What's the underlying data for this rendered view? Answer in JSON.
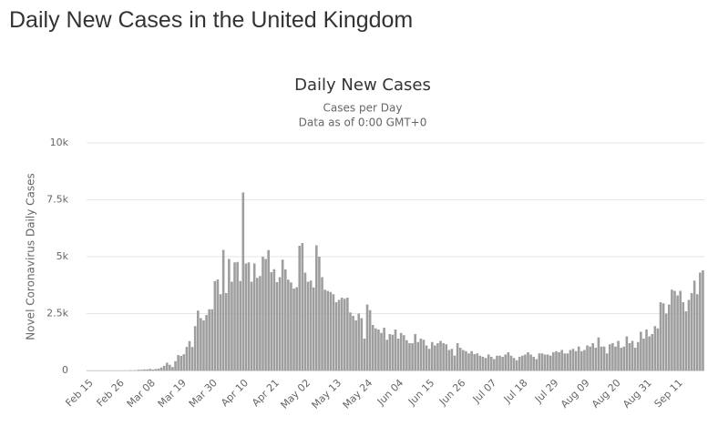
{
  "page_title": "Daily New Cases in the United Kingdom",
  "chart_data": {
    "type": "bar",
    "title": "Daily New Cases",
    "subtitle": [
      "Cases per Day",
      "Data as of 0:00 GMT+0"
    ],
    "y_label": "Novel Coronavirus Daily Cases",
    "color": "#9e9e9e",
    "grid": true,
    "ylim": [
      0,
      10000
    ],
    "yticks": [
      0,
      {
        "value": 2500,
        "label": "2.5k"
      },
      {
        "value": 5000,
        "label": "5k"
      },
      {
        "value": 7500,
        "label": "7.5k"
      },
      {
        "value": 10000,
        "label": "10k"
      }
    ],
    "categories": [
      "Feb 15",
      null,
      null,
      null,
      null,
      null,
      null,
      null,
      null,
      null,
      null,
      "Feb 26",
      null,
      null,
      null,
      null,
      null,
      null,
      null,
      null,
      null,
      null,
      "Mar 08",
      null,
      null,
      null,
      null,
      null,
      null,
      null,
      null,
      null,
      null,
      "Mar 19",
      null,
      null,
      null,
      null,
      null,
      null,
      null,
      null,
      null,
      null,
      "Mar 30",
      null,
      null,
      null,
      null,
      null,
      null,
      null,
      null,
      null,
      null,
      "Apr 10",
      null,
      null,
      null,
      null,
      null,
      null,
      null,
      null,
      null,
      null,
      "Apr 21",
      null,
      null,
      null,
      null,
      null,
      null,
      null,
      null,
      null,
      null,
      "May 02",
      null,
      null,
      null,
      null,
      null,
      null,
      null,
      null,
      null,
      null,
      "May 13",
      null,
      null,
      null,
      null,
      null,
      null,
      null,
      null,
      null,
      null,
      "May 24",
      null,
      null,
      null,
      null,
      null,
      null,
      null,
      null,
      null,
      null,
      "Jun 04",
      null,
      null,
      null,
      null,
      null,
      null,
      null,
      null,
      null,
      null,
      "Jun 15",
      null,
      null,
      null,
      null,
      null,
      null,
      null,
      null,
      null,
      null,
      "Jun 26",
      null,
      null,
      null,
      null,
      null,
      null,
      null,
      null,
      null,
      null,
      "Jul 07",
      null,
      null,
      null,
      null,
      null,
      null,
      null,
      null,
      null,
      null,
      "Jul 18",
      null,
      null,
      null,
      null,
      null,
      null,
      null,
      null,
      null,
      null,
      "Jul 29",
      null,
      null,
      null,
      null,
      null,
      null,
      null,
      null,
      null,
      null,
      "Aug 09",
      null,
      null,
      null,
      null,
      null,
      null,
      null,
      null,
      null,
      null,
      "Aug 20",
      null,
      null,
      null,
      null,
      null,
      null,
      null,
      null,
      null,
      null,
      "Aug 31",
      null,
      null,
      null,
      null,
      null,
      null,
      null,
      null,
      null,
      null,
      "Sep 11",
      null,
      null,
      null,
      null,
      null,
      null,
      null,
      null,
      null
    ],
    "values": [
      0,
      0,
      0,
      0,
      0,
      0,
      0,
      0,
      0,
      4,
      0,
      0,
      2,
      5,
      3,
      12,
      4,
      11,
      34,
      29,
      48,
      45,
      69,
      43,
      62,
      77,
      130,
      208,
      342,
      251,
      152,
      407,
      676,
      643,
      714,
      1035,
      1289,
      1030,
      1950,
      2630,
      2300,
      2200,
      2440,
      2690,
      2690,
      3930,
      4000,
      3350,
      5300,
      3400,
      4900,
      3900,
      4750,
      4770,
      3930,
      7820,
      4700,
      4750,
      3900,
      4700,
      4070,
      4150,
      5000,
      4900,
      5290,
      4320,
      4450,
      3880,
      4100,
      4870,
      4440,
      3990,
      3870,
      3600,
      3660,
      5480,
      5600,
      4300,
      3900,
      3950,
      3650,
      5500,
      5000,
      4100,
      3550,
      3500,
      3450,
      3350,
      3000,
      3100,
      3200,
      3150,
      3200,
      2550,
      2400,
      2200,
      2500,
      2300,
      1400,
      2900,
      2650,
      2000,
      1850,
      1800,
      1650,
      1880,
      1350,
      1600,
      1570,
      1800,
      1400,
      1650,
      1550,
      1330,
      1200,
      1200,
      1600,
      1250,
      1400,
      1350,
      1100,
      950,
      1250,
      1100,
      1200,
      1300,
      1200,
      1150,
      900,
      950,
      650,
      1200,
      1000,
      900,
      850,
      750,
      850,
      720,
      750,
      650,
      600,
      550,
      700,
      600,
      500,
      650,
      650,
      600,
      700,
      800,
      650,
      550,
      450,
      600,
      650,
      700,
      800,
      700,
      600,
      500,
      750,
      750,
      700,
      700,
      650,
      800,
      850,
      800,
      900,
      750,
      750,
      900,
      950,
      850,
      1050,
      850,
      900,
      1100,
      1050,
      1200,
      1000,
      1450,
      1050,
      1050,
      750,
      1150,
      1200,
      1050,
      1300,
      1000,
      1050,
      1500,
      1200,
      1300,
      1000,
      1250,
      1700,
      1400,
      1800,
      1500,
      1600,
      1950,
      1850,
      3000,
      2950,
      2500,
      2900,
      3550,
      3500,
      3300,
      3500,
      3000,
      2600,
      3100,
      3400,
      3950,
      3350,
      4300,
      4400
    ]
  }
}
